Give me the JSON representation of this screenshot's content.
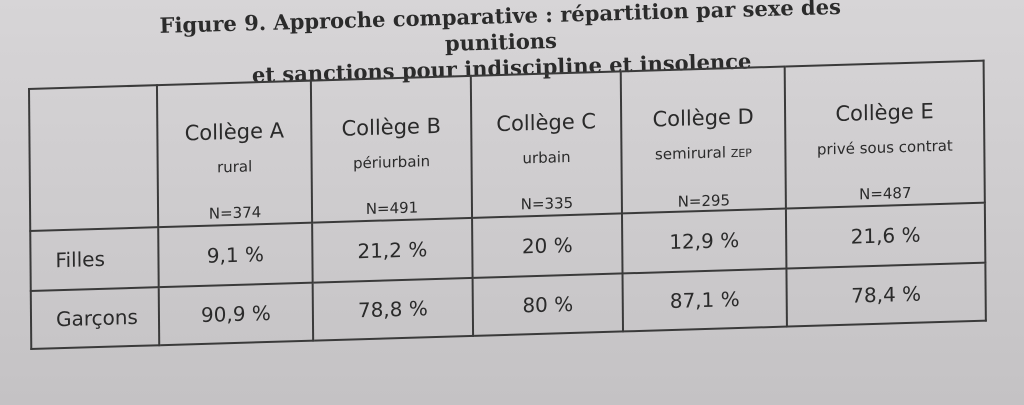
{
  "figure": {
    "title_line1": "Figure 9. Approche comparative : répartition par sexe des punitions",
    "title_line2": "et sanctions pour indiscipline et insolence"
  },
  "table": {
    "columns": [
      {
        "name": "Collège A",
        "type": "rural",
        "type_suffix": "",
        "n": "N=374"
      },
      {
        "name": "Collège B",
        "type": "périurbain",
        "type_suffix": "",
        "n": "N=491"
      },
      {
        "name": "Collège C",
        "type": "urbain",
        "type_suffix": "",
        "n": "N=335"
      },
      {
        "name": "Collège D",
        "type": "semirural",
        "type_suffix": "ZEP",
        "n": "N=295"
      },
      {
        "name": "Collège E",
        "type": "privé sous contrat",
        "type_suffix": "",
        "n": "N=487"
      }
    ],
    "rows": [
      {
        "label": "Filles",
        "values": [
          "9,1 %",
          "21,2 %",
          "20 %",
          "12,9 %",
          "21,6 %"
        ]
      },
      {
        "label": "Garçons",
        "values": [
          "90,9 %",
          "78,8 %",
          "80 %",
          "87,1 %",
          "78,4 %"
        ]
      }
    ]
  }
}
